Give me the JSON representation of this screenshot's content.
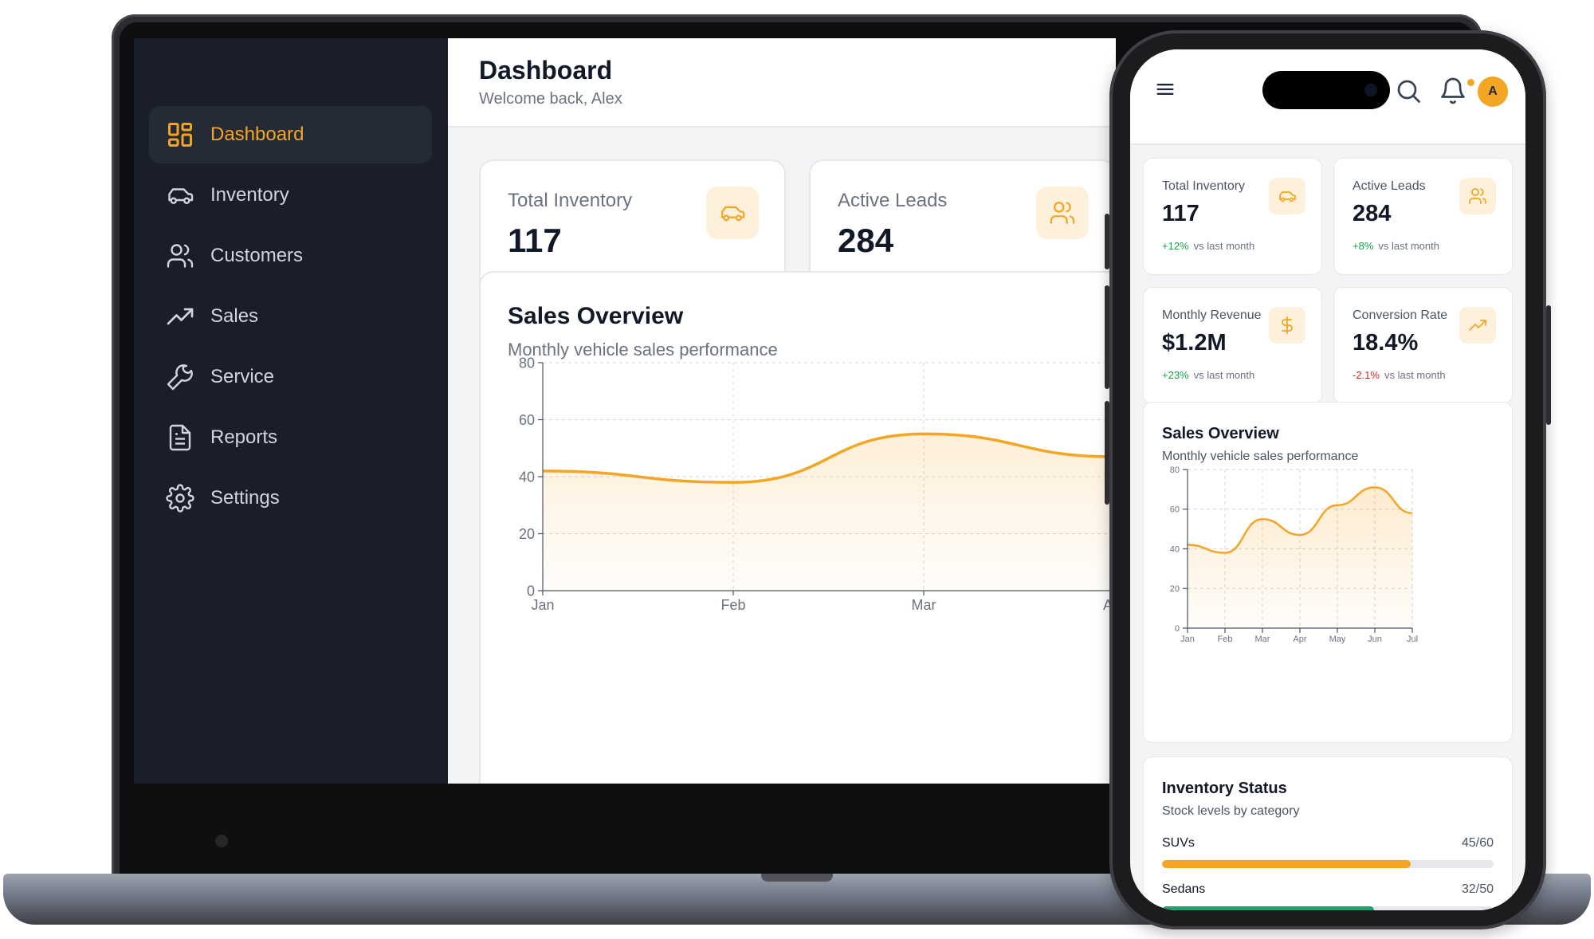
{
  "colors": {
    "accent": "#f5a524",
    "sidebar_bg": "#1a1e2a",
    "positive": "#16a34a",
    "negative": "#dc2626",
    "green_bar": "#22a06b"
  },
  "sidebar": {
    "items": [
      {
        "label": "Dashboard",
        "icon": "grid-icon",
        "active": true
      },
      {
        "label": "Inventory",
        "icon": "car-icon",
        "active": false
      },
      {
        "label": "Customers",
        "icon": "users-icon",
        "active": false
      },
      {
        "label": "Sales",
        "icon": "trending-up-icon",
        "active": false
      },
      {
        "label": "Service",
        "icon": "wrench-icon",
        "active": false
      },
      {
        "label": "Reports",
        "icon": "file-text-icon",
        "active": false
      },
      {
        "label": "Settings",
        "icon": "gear-icon",
        "active": false
      }
    ]
  },
  "header": {
    "title": "Dashboard",
    "subtitle": "Welcome back, Alex"
  },
  "stats": [
    {
      "label": "Total Inventory",
      "value": "117",
      "change": "+12%",
      "direction": "up",
      "suffix": "vs last month",
      "icon": "car-icon"
    },
    {
      "label": "Active Leads",
      "value": "284",
      "change": "+8%",
      "direction": "up",
      "suffix": "vs last month",
      "icon": "users-icon"
    },
    {
      "label": "Monthly Revenue",
      "value": "$1.2M",
      "change": "+23%",
      "direction": "up",
      "suffix": "vs last month",
      "icon": "dollar-icon"
    },
    {
      "label": "Conversion Rate",
      "value": "18.4%",
      "change": "-2.1%",
      "direction": "down",
      "suffix": "vs last month",
      "icon": "trending-up-icon"
    }
  ],
  "sales_overview": {
    "title": "Sales Overview",
    "subtitle": "Monthly vehicle sales performance"
  },
  "chart_data": {
    "type": "area",
    "title": "Sales Overview",
    "subtitle": "Monthly vehicle sales performance",
    "categories": [
      "Jan",
      "Feb",
      "Mar",
      "Apr",
      "May",
      "Jun",
      "Jul"
    ],
    "series": [
      {
        "values": [
          42,
          38,
          55,
          47,
          62,
          71,
          58
        ]
      }
    ],
    "yticks": [
      0,
      20,
      40,
      60,
      80
    ],
    "ylim": [
      0,
      80
    ],
    "grid": true,
    "xlabel": "",
    "ylabel": ""
  },
  "inventory_status": {
    "title": "Inventory Status",
    "subtitle": "Stock levels by category",
    "rows": [
      {
        "name": "SUVs",
        "count": "45/60",
        "fill": 0.75,
        "color": "#f5a524"
      },
      {
        "name": "Sedans",
        "count": "32/50",
        "fill": 0.64,
        "color": "#22a06b"
      }
    ]
  },
  "phone_header": {
    "avatar_initial": "A"
  }
}
